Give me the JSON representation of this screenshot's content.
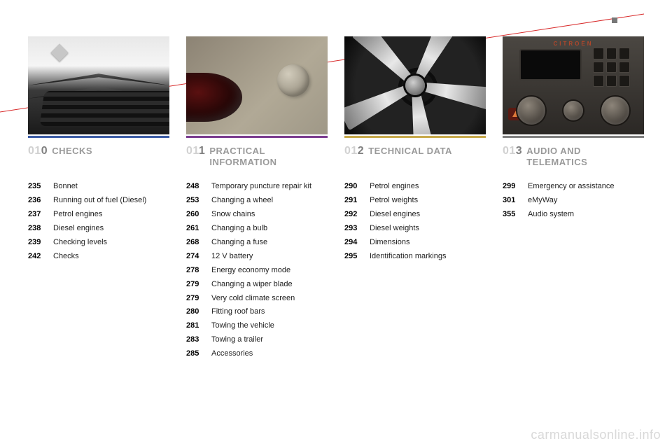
{
  "underline_colors": [
    "#3b5ba5",
    "#7a3b8f",
    "#c7a94a",
    "#808080"
  ],
  "sections": [
    {
      "number_lead": "01",
      "number_last": "0",
      "title": "CHECKS",
      "items": [
        {
          "page": "235",
          "label": "Bonnet"
        },
        {
          "page": "236",
          "label": "Running out of fuel (Diesel)"
        },
        {
          "page": "237",
          "label": "Petrol engines"
        },
        {
          "page": "238",
          "label": "Diesel engines"
        },
        {
          "page": "239",
          "label": "Checking levels"
        },
        {
          "page": "242",
          "label": "Checks"
        }
      ]
    },
    {
      "number_lead": "01",
      "number_last": "1",
      "title": "PRACTICAL INFORMATION",
      "items": [
        {
          "page": "248",
          "label": "Temporary puncture repair kit"
        },
        {
          "page": "253",
          "label": "Changing a wheel"
        },
        {
          "page": "260",
          "label": "Snow chains"
        },
        {
          "page": "261",
          "label": "Changing a bulb"
        },
        {
          "page": "268",
          "label": "Changing a fuse"
        },
        {
          "page": "274",
          "label": "12 V battery"
        },
        {
          "page": "278",
          "label": "Energy economy mode"
        },
        {
          "page": "279",
          "label": "Changing a wiper blade"
        },
        {
          "page": "279",
          "label": "Very cold climate screen"
        },
        {
          "page": "280",
          "label": "Fitting roof bars"
        },
        {
          "page": "281",
          "label": "Towing the vehicle"
        },
        {
          "page": "283",
          "label": "Towing a trailer"
        },
        {
          "page": "285",
          "label": "Accessories"
        }
      ]
    },
    {
      "number_lead": "01",
      "number_last": "2",
      "title": "TECHNICAL DATA",
      "items": [
        {
          "page": "290",
          "label": "Petrol engines"
        },
        {
          "page": "291",
          "label": "Petrol weights"
        },
        {
          "page": "292",
          "label": "Diesel engines"
        },
        {
          "page": "293",
          "label": "Diesel weights"
        },
        {
          "page": "294",
          "label": "Dimensions"
        },
        {
          "page": "295",
          "label": "Identification markings"
        }
      ]
    },
    {
      "number_lead": "01",
      "number_last": "3",
      "title": "AUDIO AND TELEMATICS",
      "items": [
        {
          "page": "299",
          "label": "Emergency or assistance"
        },
        {
          "page": "301",
          "label": "eMyWay"
        },
        {
          "page": "355",
          "label": "Audio system"
        }
      ]
    }
  ],
  "watermark": "carmanualsonline.info",
  "dash_brand": "CITROËN"
}
